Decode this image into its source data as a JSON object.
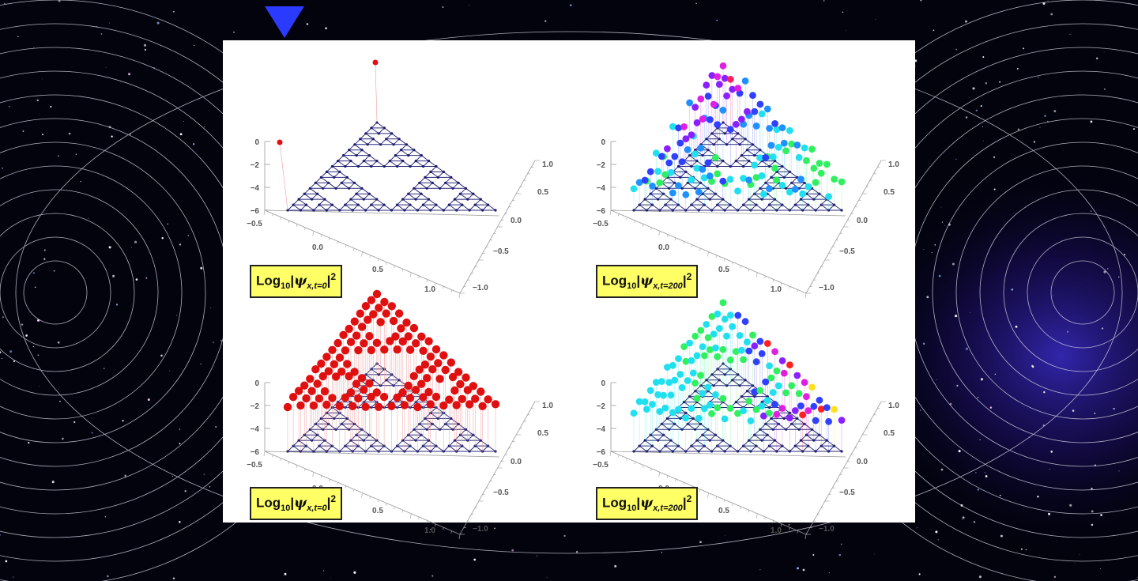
{
  "background": {
    "color": "#02030d",
    "description_icon": "starfield-with-nebula"
  },
  "chart_data": [
    {
      "type": "scatter3d",
      "panel": "top-left",
      "label": {
        "base": "Log",
        "base_sub": "10",
        "symbol": "ψ",
        "sub": "x,t=0",
        "power": "2"
      },
      "z_ticks": [
        "0",
        "−2",
        "−4",
        "−6"
      ],
      "x_ticks": [
        "−0.5",
        "0.0",
        "0.5",
        "1.0"
      ],
      "y_ticks": [
        "1.0",
        "0.5",
        "0.0",
        "−0.5",
        "−1.0"
      ],
      "zlim": [
        -6,
        0
      ],
      "points": [
        {
          "vertex": "left-corner",
          "log10_prob": 0,
          "color": "#e01010"
        },
        {
          "vertex": "apex",
          "log10_prob": 0,
          "color": "#e01010"
        }
      ],
      "other_points_log10_prob": -6,
      "lattice": "Sierpinski gasket",
      "dominant_color": "#e01010"
    },
    {
      "type": "scatter3d",
      "panel": "top-right",
      "label": {
        "base": "Log",
        "base_sub": "10",
        "symbol": "ψ",
        "sub": "x,t=200",
        "power": "2"
      },
      "z_ticks": [
        "0",
        "−2",
        "−4",
        "−6"
      ],
      "x_ticks": [
        "−0.5",
        "0.0",
        "0.5",
        "1.0"
      ],
      "y_ticks": [
        "1.0",
        "0.5",
        "0.0",
        "−0.5",
        "−1.0"
      ],
      "zlim": [
        -6,
        0
      ],
      "lattice": "Sierpinski gasket",
      "colormap": [
        "#ff2060",
        "#e020e0",
        "#8a20ff",
        "#3040ff",
        "#2090ff",
        "#20e0f0",
        "#30f060"
      ]
    },
    {
      "type": "scatter3d",
      "panel": "bottom-left",
      "label": {
        "base": "Log",
        "base_sub": "10",
        "symbol": "ψ",
        "sub": "x,t=0",
        "power": "2"
      },
      "z_ticks": [
        "0",
        "−2",
        "−4",
        "−6"
      ],
      "x_ticks": [
        "−0.5",
        "0.0",
        "0.5",
        "1.0"
      ],
      "y_ticks": [
        "1.0",
        "0.5",
        "0.0",
        "−0.5",
        "−1.0"
      ],
      "zlim": [
        -6,
        0
      ],
      "lattice": "Sierpinski gasket",
      "dominant_color": "#e01010"
    },
    {
      "type": "scatter3d",
      "panel": "bottom-right",
      "label": {
        "base": "Log",
        "base_sub": "10",
        "symbol": "ψ",
        "sub": "x,t=200",
        "power": "2"
      },
      "z_ticks": [
        "0",
        "−2",
        "−4",
        "−6"
      ],
      "x_ticks": [
        "−0.5",
        "0.0",
        "0.5",
        "1.0"
      ],
      "y_ticks": [
        "1.0",
        "0.5",
        "0.0",
        "−0.5",
        "−1.0"
      ],
      "zlim": [
        -6,
        0
      ],
      "lattice": "Sierpinski gasket",
      "colormap": [
        "#20e0f0",
        "#30f060",
        "#3040ff",
        "#8a20ff",
        "#e020e0",
        "#ff2020",
        "#ffe020"
      ]
    }
  ]
}
